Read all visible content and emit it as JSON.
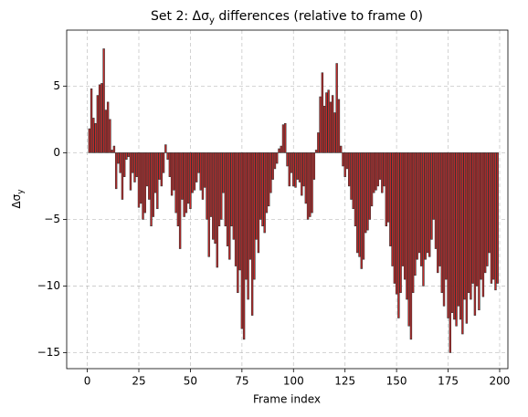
{
  "chart_data": {
    "type": "bar",
    "title": [
      "Set 2: Δσ",
      "y",
      " differences (relative to frame 0)"
    ],
    "xlabel": "Frame index",
    "ylabel": [
      "Δσ",
      "y"
    ],
    "color": "#c62828",
    "edgecolor": "#333333",
    "grid": true,
    "xlim": [
      -10,
      204
    ],
    "ylim": [
      -16.2,
      9.2
    ],
    "xticks": [
      0,
      25,
      50,
      75,
      100,
      125,
      150,
      175,
      200
    ],
    "yticks": [
      {
        "value": -15,
        "label": "−15"
      },
      {
        "value": -10,
        "label": "−10"
      },
      {
        "value": -5,
        "label": "−5"
      },
      0,
      5
    ],
    "x": [
      0,
      1,
      2,
      3,
      4,
      5,
      6,
      7,
      8,
      9,
      10,
      11,
      12,
      13,
      14,
      15,
      16,
      17,
      18,
      19,
      20,
      21,
      22,
      23,
      24,
      25,
      26,
      27,
      28,
      29,
      30,
      31,
      32,
      33,
      34,
      35,
      36,
      37,
      38,
      39,
      40,
      41,
      42,
      43,
      44,
      45,
      46,
      47,
      48,
      49,
      50,
      51,
      52,
      53,
      54,
      55,
      56,
      57,
      58,
      59,
      60,
      61,
      62,
      63,
      64,
      65,
      66,
      67,
      68,
      69,
      70,
      71,
      72,
      73,
      74,
      75,
      76,
      77,
      78,
      79,
      80,
      81,
      82,
      83,
      84,
      85,
      86,
      87,
      88,
      89,
      90,
      91,
      92,
      93,
      94,
      95,
      96,
      97,
      98,
      99,
      100,
      101,
      102,
      103,
      104,
      105,
      106,
      107,
      108,
      109,
      110,
      111,
      112,
      113,
      114,
      115,
      116,
      117,
      118,
      119,
      120,
      121,
      122,
      123,
      124,
      125,
      126,
      127,
      128,
      129,
      130,
      131,
      132,
      133,
      134,
      135,
      136,
      137,
      138,
      139,
      140,
      141,
      142,
      143,
      144,
      145,
      146,
      147,
      148,
      149,
      150,
      151,
      152,
      153,
      154,
      155,
      156,
      157,
      158,
      159,
      160,
      161,
      162,
      163,
      164,
      165,
      166,
      167,
      168,
      169,
      170,
      171,
      172,
      173,
      174,
      175,
      176,
      177,
      178,
      179,
      180,
      181,
      182,
      183,
      184,
      185,
      186,
      187,
      188,
      189,
      190,
      191,
      192,
      193,
      194,
      195,
      196,
      197,
      198,
      199
    ],
    "values": [
      0,
      1.8,
      4.8,
      2.6,
      2.2,
      4.3,
      5.1,
      5.2,
      7.8,
      3.2,
      3.8,
      2.5,
      0.2,
      0.5,
      -2.7,
      -0.8,
      -1.5,
      -3.5,
      -1.8,
      -0.5,
      -0.3,
      -2.8,
      -1.5,
      -2.2,
      -1.8,
      -4.1,
      -3.8,
      -5.0,
      -4.5,
      -2.5,
      -3.5,
      -5.5,
      -4.8,
      -3.0,
      -4.2,
      -2.0,
      -2.5,
      -1.5,
      0.6,
      -0.5,
      -1.8,
      -3.2,
      -2.8,
      -4.5,
      -5.5,
      -7.2,
      -3.5,
      -4.8,
      -4.5,
      -3.8,
      -4.2,
      -3.0,
      -2.8,
      -2.2,
      -1.5,
      -2.8,
      -3.5,
      -2.6,
      -5.0,
      -7.8,
      -4.8,
      -6.5,
      -6.8,
      -8.6,
      -5.5,
      -5.0,
      -3.0,
      -5.5,
      -7.0,
      -8.0,
      -5.5,
      -6.5,
      -8.5,
      -10.5,
      -8.8,
      -13.2,
      -14.0,
      -9.5,
      -11.0,
      -8.0,
      -12.2,
      -9.5,
      -6.5,
      -7.5,
      -5.0,
      -5.5,
      -6.0,
      -4.5,
      -4.0,
      -3.0,
      -2.0,
      -1.2,
      -0.8,
      0.3,
      0.5,
      2.1,
      2.2,
      -1.0,
      -2.5,
      -1.5,
      -2.5,
      -2.6,
      -2.0,
      -2.2,
      -3.2,
      -2.5,
      -3.8,
      -5.0,
      -4.8,
      -4.5,
      -2.0,
      0.2,
      1.5,
      4.2,
      6.0,
      3.5,
      4.5,
      4.7,
      3.8,
      4.3,
      3.0,
      6.7,
      4.0,
      0.5,
      -1.0,
      -1.8,
      -1.2,
      -2.5,
      -3.5,
      -4.2,
      -5.5,
      -7.5,
      -7.8,
      -8.7,
      -8.0,
      -6.0,
      -5.8,
      -5.0,
      -4.0,
      -3.0,
      -2.8,
      -2.5,
      -2.0,
      -3.0,
      -2.5,
      -5.5,
      -5.2,
      -7.0,
      -8.5,
      -9.8,
      -10.6,
      -12.4,
      -10.5,
      -8.5,
      -9.5,
      -11.0,
      -13.0,
      -14.0,
      -10.5,
      -9.2,
      -8.0,
      -7.5,
      -8.5,
      -10.0,
      -8.0,
      -7.5,
      -7.8,
      -6.5,
      -5.0,
      -7.2,
      -9.0,
      -8.5,
      -10.5,
      -11.5,
      -9.5,
      -12.4,
      -15.0,
      -12.0,
      -12.5,
      -13.0,
      -11.5,
      -12.5,
      -13.6,
      -11.0,
      -12.8,
      -10.5,
      -11.0,
      -9.8,
      -12.2,
      -10.0,
      -11.8,
      -9.5,
      -10.8,
      -9.0,
      -8.5,
      -7.5,
      -9.8,
      -9.5,
      -10.3,
      -9.8
    ]
  }
}
